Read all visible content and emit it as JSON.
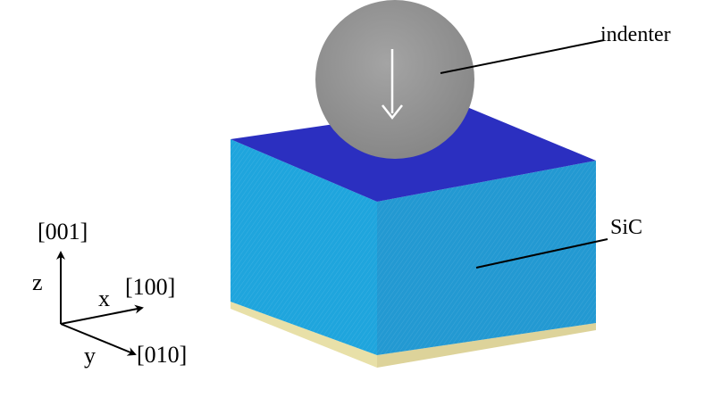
{
  "labels": {
    "indenter": "indenter",
    "material": "SiC",
    "z_axis_letter": "z",
    "x_axis_letter": "x",
    "y_axis_letter": "y",
    "z_direction": "[001]",
    "x_direction": "[100]",
    "y_direction": "[010]"
  },
  "colors": {
    "top_face": "#2b2fc0",
    "front_face": "#1fa5dd",
    "side_face": "#2399d2",
    "substrate_layer": "#e8e0a8",
    "indenter_fill": "#9a9a9a",
    "indenter_arrow": "#ffffff",
    "axis_lines": "#000000"
  }
}
